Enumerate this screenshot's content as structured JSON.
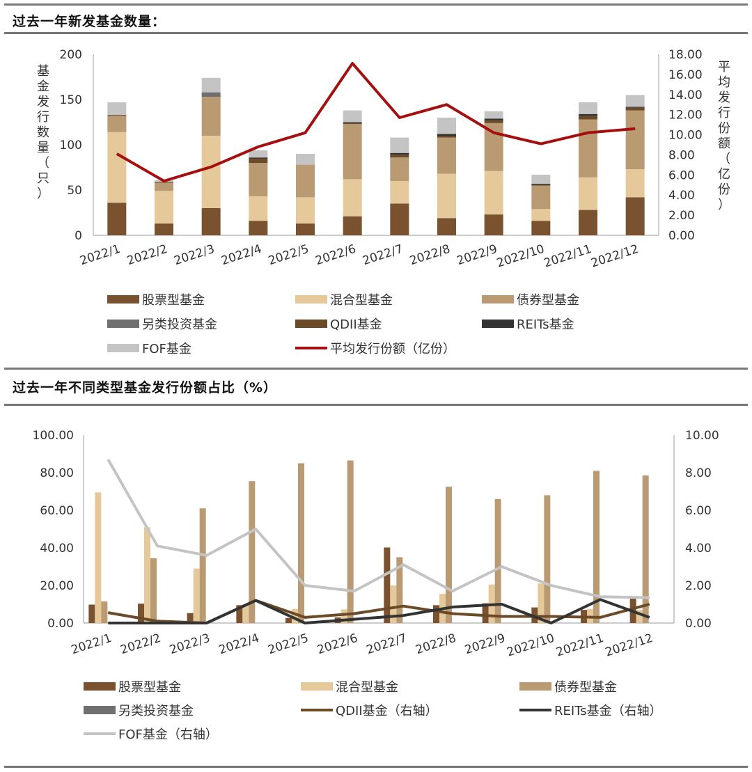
{
  "colors": {
    "stock": "#7a5230",
    "mixed": "#e5c99a",
    "bond": "#b99a72",
    "alt": "#6f6f6f",
    "qdii": "#6b4a28",
    "reits": "#333333",
    "fof": "#c4c4c4",
    "avg": "#a50f0f"
  },
  "chart_data": [
    {
      "type": "bar",
      "stacked": true,
      "title": "过去一年新发基金数量：",
      "categories": [
        "2022/1",
        "2022/2",
        "2022/3",
        "2022/4",
        "2022/5",
        "2022/6",
        "2022/7",
        "2022/8",
        "2022/9",
        "2022/10",
        "2022/11",
        "2022/12"
      ],
      "ylabel": "基金发行数量（只）",
      "y2label": "平均发行份额（亿份）",
      "ylim": [
        0,
        200
      ],
      "y2lim": [
        0,
        18
      ],
      "yticks": [
        "0",
        "50",
        "100",
        "150",
        "200"
      ],
      "y2ticks": [
        "0.00",
        "2.00",
        "4.00",
        "6.00",
        "8.00",
        "10.00",
        "12.00",
        "14.00",
        "16.00",
        "18.00"
      ],
      "series": [
        {
          "name": "股票型基金",
          "color_key": "stock",
          "values": [
            36,
            13,
            30,
            16,
            13,
            21,
            35,
            19,
            23,
            16,
            28,
            42
          ]
        },
        {
          "name": "混合型基金",
          "color_key": "mixed",
          "values": [
            78,
            36,
            80,
            27,
            29,
            41,
            25,
            49,
            48,
            13,
            36,
            31
          ]
        },
        {
          "name": "债券型基金",
          "color_key": "bond",
          "values": [
            18,
            9,
            43,
            37,
            36,
            61,
            26,
            40,
            53,
            26,
            64,
            65
          ]
        },
        {
          "name": "另类投资基金",
          "color_key": "alt",
          "values": [
            0,
            0,
            5,
            0,
            0,
            0,
            0,
            0,
            0,
            0,
            0,
            0
          ]
        },
        {
          "name": "QDII基金",
          "color_key": "qdii",
          "values": [
            1,
            1,
            0,
            5,
            0,
            1,
            3,
            2,
            3,
            1,
            4,
            3
          ]
        },
        {
          "name": "REITs基金",
          "color_key": "reits",
          "values": [
            0,
            0,
            0,
            1,
            0,
            1,
            2,
            2,
            2,
            1,
            2,
            1
          ]
        },
        {
          "name": "FOF基金",
          "color_key": "fof",
          "values": [
            14,
            2,
            16,
            8,
            12,
            13,
            17,
            18,
            8,
            10,
            13,
            13
          ]
        }
      ],
      "line_series": [
        {
          "name": "平均发行份额（亿份）",
          "color_key": "avg",
          "axis": "right",
          "values": [
            8.1,
            5.4,
            6.8,
            8.8,
            10.2,
            17.1,
            11.7,
            13.0,
            10.2,
            9.1,
            10.2,
            10.6
          ]
        }
      ],
      "legend": [
        "股票型基金",
        "混合型基金",
        "债券型基金",
        "另类投资基金",
        "QDII基金",
        "REITs基金",
        "FOF基金",
        "平均发行份额（亿份）"
      ]
    },
    {
      "type": "bar",
      "title": "过去一年不同类型基金发行份额占比（%）",
      "categories": [
        "2022/1",
        "2022/2",
        "2022/3",
        "2022/4",
        "2022/5",
        "2022/6",
        "2022/7",
        "2022/8",
        "2022/9",
        "2022/10",
        "2022/11",
        "2022/12"
      ],
      "ylim": [
        0,
        100
      ],
      "y2lim": [
        0,
        10
      ],
      "yticks": [
        "0.00",
        "20.00",
        "40.00",
        "60.00",
        "80.00",
        "100.00"
      ],
      "y2ticks": [
        "0.00",
        "2.00",
        "4.00",
        "6.00",
        "8.00",
        "10.00"
      ],
      "series": [
        {
          "name": "股票型基金",
          "color_key": "stock",
          "values": [
            9.8,
            10.3,
            5.3,
            9.5,
            2.7,
            3.0,
            40.2,
            9.5,
            10.5,
            8.3,
            7.0,
            13.0
          ]
        },
        {
          "name": "混合型基金",
          "color_key": "mixed",
          "values": [
            69.5,
            51.0,
            29.0,
            10.0,
            7.5,
            7.3,
            20.0,
            15.5,
            20.5,
            21.0,
            7.5,
            7.0
          ]
        },
        {
          "name": "债券型基金",
          "color_key": "bond",
          "values": [
            11.5,
            34.5,
            61.0,
            75.5,
            85.0,
            86.5,
            35.0,
            72.5,
            66.0,
            68.0,
            81.0,
            78.5
          ]
        },
        {
          "name": "另类投资基金",
          "color_key": "alt",
          "values": [
            0,
            0,
            0,
            0,
            0,
            0,
            0,
            0,
            0,
            0,
            0,
            0
          ]
        }
      ],
      "line_series": [
        {
          "name": "QDII基金（右轴）",
          "color_key": "qdii",
          "axis": "right",
          "values": [
            0.55,
            0.1,
            0.0,
            1.2,
            0.3,
            0.5,
            0.9,
            0.5,
            0.35,
            0.35,
            0.3,
            1.0
          ]
        },
        {
          "name": "REITs基金（右轴）",
          "color_key": "reits",
          "axis": "right",
          "values": [
            0.0,
            0.0,
            0.0,
            1.2,
            0.0,
            0.2,
            0.4,
            0.85,
            1.0,
            0.0,
            1.25,
            0.3
          ]
        },
        {
          "name": "FOF基金（右轴）",
          "color_key": "fof",
          "axis": "right",
          "values": [
            8.7,
            4.1,
            3.6,
            5.0,
            2.0,
            1.7,
            3.1,
            1.7,
            3.0,
            2.0,
            1.4,
            1.35
          ]
        }
      ],
      "legend": [
        "股票型基金",
        "混合型基金",
        "债券型基金",
        "另类投资基金",
        "QDII基金（右轴）",
        "REITs基金（右轴）",
        "FOF基金（右轴）"
      ]
    }
  ]
}
